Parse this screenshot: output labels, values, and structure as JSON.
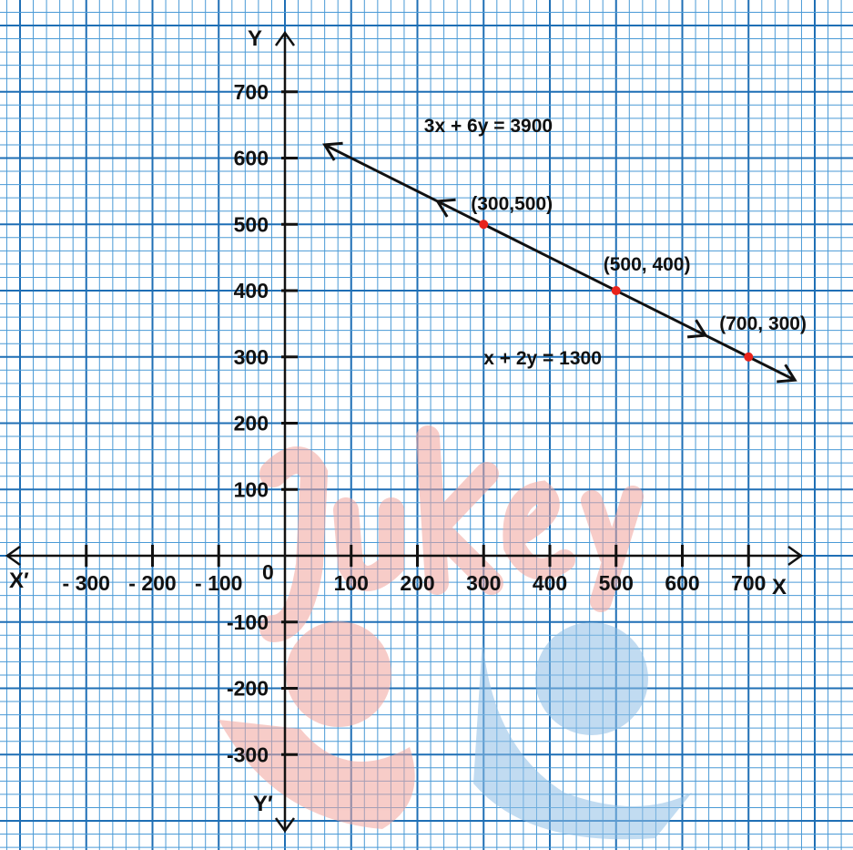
{
  "chart_data": {
    "type": "line",
    "title": "",
    "xlabel": "X",
    "ylabel": "Y",
    "x_negative_label": "X′",
    "y_negative_label": "Y′",
    "origin_label": "0",
    "xlim": [
      -420,
      780
    ],
    "ylim": [
      -390,
      790
    ],
    "x_ticks": [
      -300,
      -200,
      -100,
      100,
      200,
      300,
      400,
      500,
      600,
      700
    ],
    "x_tick_labels": [
      "- 300",
      "- 200",
      "- 100",
      "100",
      "200",
      "300",
      "400",
      "500",
      "600",
      "700"
    ],
    "y_ticks": [
      -300,
      -200,
      -100,
      100,
      200,
      300,
      400,
      500,
      600,
      700
    ],
    "y_tick_labels": [
      "-300",
      "-200",
      "-100",
      "100",
      "200",
      "300",
      "400",
      "500",
      "600",
      "700"
    ],
    "grid": true,
    "series": [
      {
        "x": [
          60,
          770
        ],
        "y": [
          620,
          265
        ],
        "points": [
          {
            "x": 300,
            "y": 500,
            "label": "(300,500)"
          },
          {
            "x": 500,
            "y": 400,
            "label": "(500, 400)"
          },
          {
            "x": 700,
            "y": 300,
            "label": "(700, 300)"
          }
        ]
      }
    ],
    "annotations": [
      {
        "text": "3x + 6y = 3900",
        "x": 210,
        "y": 650
      },
      {
        "text": "x + 2y = 1300",
        "x": 300,
        "y": 300
      }
    ],
    "colors": {
      "background": "#ffffff",
      "grid_minor": "#4a9ad6",
      "grid_major": "#1f6fb5",
      "axis": "#111111",
      "line": "#111111",
      "point": "#e8231c",
      "watermark_red": "#f2a49c",
      "watermark_blue": "#8fbfe6"
    }
  }
}
